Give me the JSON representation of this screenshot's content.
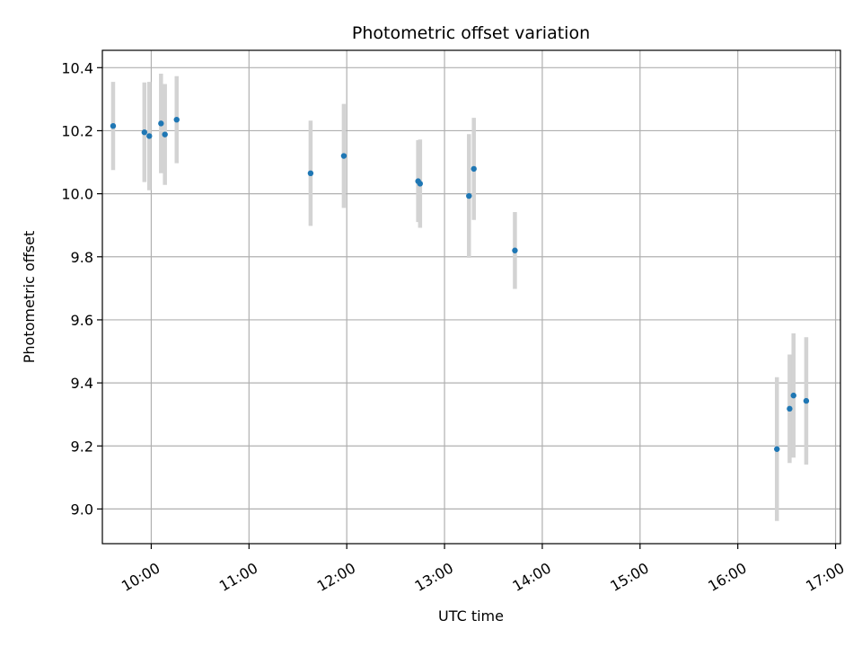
{
  "chart_data": {
    "type": "scatter",
    "title": "Photometric offset variation",
    "xlabel": "UTC time",
    "ylabel": "Photometric offset",
    "x_unit": "hours UTC",
    "xlim": [
      9.5,
      17.05
    ],
    "ylim": [
      8.89,
      10.455
    ],
    "grid": true,
    "x_ticks": [
      {
        "value": 10,
        "label": "10:00"
      },
      {
        "value": 11,
        "label": "11:00"
      },
      {
        "value": 12,
        "label": "12:00"
      },
      {
        "value": 13,
        "label": "13:00"
      },
      {
        "value": 14,
        "label": "14:00"
      },
      {
        "value": 15,
        "label": "15:00"
      },
      {
        "value": 16,
        "label": "16:00"
      },
      {
        "value": 17,
        "label": "17:00"
      }
    ],
    "y_ticks": [
      {
        "value": 9.0,
        "label": "9.0"
      },
      {
        "value": 9.2,
        "label": "9.2"
      },
      {
        "value": 9.4,
        "label": "9.4"
      },
      {
        "value": 9.6,
        "label": "9.6"
      },
      {
        "value": 9.8,
        "label": "9.8"
      },
      {
        "value": 10.0,
        "label": "10.0"
      },
      {
        "value": 10.2,
        "label": "10.2"
      },
      {
        "value": 10.4,
        "label": "10.4"
      }
    ],
    "series": [
      {
        "name": "offset",
        "marker_color": "#1f77b4",
        "errorbar_color": "#d3d3d3",
        "points": [
          {
            "x": 9.61,
            "y": 10.215,
            "err": 0.14
          },
          {
            "x": 9.93,
            "y": 10.195,
            "err": 0.158
          },
          {
            "x": 9.98,
            "y": 10.183,
            "err": 0.172
          },
          {
            "x": 10.1,
            "y": 10.223,
            "err": 0.158
          },
          {
            "x": 10.14,
            "y": 10.188,
            "err": 0.16
          },
          {
            "x": 10.26,
            "y": 10.235,
            "err": 0.138
          },
          {
            "x": 11.63,
            "y": 10.065,
            "err": 0.167
          },
          {
            "x": 11.97,
            "y": 10.12,
            "err": 0.165
          },
          {
            "x": 12.73,
            "y": 10.04,
            "err": 0.13
          },
          {
            "x": 12.75,
            "y": 10.032,
            "err": 0.14
          },
          {
            "x": 13.25,
            "y": 9.993,
            "err": 0.196
          },
          {
            "x": 13.3,
            "y": 10.079,
            "err": 0.162
          },
          {
            "x": 13.72,
            "y": 9.82,
            "err": 0.122
          },
          {
            "x": 16.4,
            "y": 9.19,
            "err": 0.228
          },
          {
            "x": 16.53,
            "y": 9.318,
            "err": 0.172
          },
          {
            "x": 16.57,
            "y": 9.36,
            "err": 0.197
          },
          {
            "x": 16.7,
            "y": 9.343,
            "err": 0.202
          }
        ]
      }
    ]
  }
}
